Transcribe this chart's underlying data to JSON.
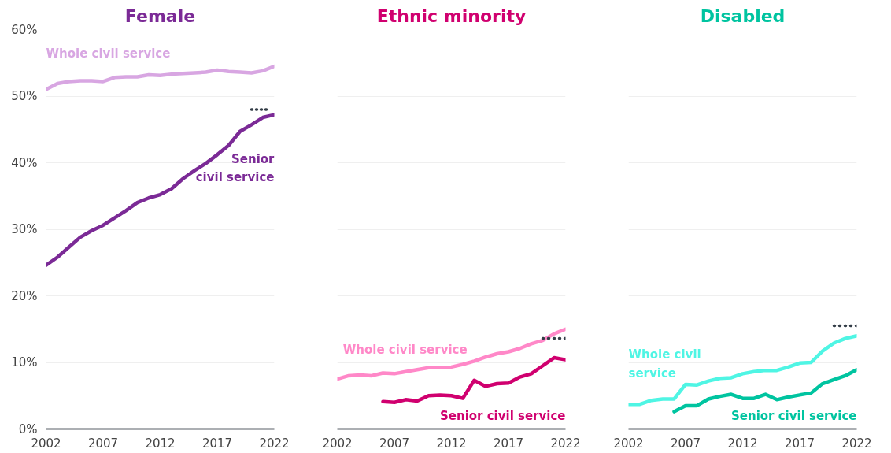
{
  "chart_data": [
    {
      "type": "line",
      "title": "Female",
      "x": [
        2002,
        2003,
        2004,
        2005,
        2006,
        2007,
        2008,
        2009,
        2010,
        2011,
        2012,
        2013,
        2014,
        2015,
        2016,
        2017,
        2018,
        2019,
        2020,
        2021,
        2022
      ],
      "series": [
        {
          "name": "Whole civil service",
          "color": "#d8a6e2",
          "values": [
            51.0,
            51.9,
            52.2,
            52.3,
            52.3,
            52.2,
            52.8,
            52.9,
            52.9,
            53.2,
            53.1,
            53.3,
            53.4,
            53.5,
            53.6,
            53.9,
            53.7,
            53.6,
            53.5,
            53.8,
            54.5
          ]
        },
        {
          "name": "Senior civil service",
          "color": "#7b2a96",
          "values": [
            24.6,
            25.8,
            27.3,
            28.8,
            29.8,
            30.6,
            31.7,
            32.8,
            34.0,
            34.7,
            35.2,
            36.1,
            37.6,
            38.8,
            39.9,
            41.2,
            42.6,
            44.7,
            45.7,
            46.8,
            47.2
          ]
        },
        {
          "color": "#333d47",
          "x": [
            2020,
            2021.6
          ],
          "values": [
            48.0,
            48.0
          ],
          "line_style": "dotted"
        }
      ],
      "xlim": [
        2002,
        2022
      ],
      "xticks": [
        2002,
        2007,
        2012,
        2017,
        2022
      ],
      "ylim": [
        0,
        60
      ],
      "yticks": [
        {
          "value": 0,
          "label": "0%"
        },
        {
          "value": 10,
          "label": "10%"
        },
        {
          "value": 20,
          "label": "20%"
        },
        {
          "value": 30,
          "label": "30%"
        },
        {
          "value": 40,
          "label": "40%"
        },
        {
          "value": 50,
          "label": "50%"
        },
        {
          "value": 60,
          "label": "60%"
        }
      ],
      "grid": "y",
      "line_style": "solid",
      "marker": "none"
    },
    {
      "type": "line",
      "title": "Ethnic minority",
      "x": [
        2002,
        2003,
        2004,
        2005,
        2006,
        2007,
        2008,
        2009,
        2010,
        2011,
        2012,
        2013,
        2014,
        2015,
        2016,
        2017,
        2018,
        2019,
        2020,
        2021,
        2022
      ],
      "series": [
        {
          "name": "Whole civil service",
          "color": "#ff88c8",
          "values": [
            7.5,
            8.0,
            8.1,
            8.0,
            8.4,
            8.3,
            8.6,
            8.9,
            9.2,
            9.2,
            9.3,
            9.7,
            10.2,
            10.8,
            11.3,
            11.6,
            12.1,
            12.8,
            13.3,
            14.3,
            15.0
          ]
        },
        {
          "name": "Senior civil service",
          "color": "#d0006f",
          "values": [
            null,
            null,
            null,
            null,
            4.1,
            4.0,
            4.4,
            4.2,
            5.0,
            5.1,
            5.0,
            4.6,
            7.3,
            6.4,
            6.8,
            6.9,
            7.8,
            8.3,
            9.5,
            10.7,
            10.4
          ]
        },
        {
          "color": "#333d47",
          "x": [
            2020,
            2022
          ],
          "values": [
            13.6,
            13.6
          ],
          "line_style": "dotted"
        }
      ],
      "xlim": [
        2002,
        2022
      ],
      "xticks": [
        2002,
        2007,
        2012,
        2017,
        2022
      ],
      "ylim": [
        0,
        60
      ],
      "yticks": [
        {
          "value": 0,
          "label": null
        },
        {
          "value": 10,
          "label": null
        },
        {
          "value": 20,
          "label": null
        },
        {
          "value": 30,
          "label": null
        },
        {
          "value": 40,
          "label": null
        },
        {
          "value": 50,
          "label": null
        },
        {
          "value": 60,
          "label": null
        }
      ],
      "tick_labels": "x",
      "grid": "y",
      "line_style": "solid",
      "marker": "none"
    },
    {
      "type": "line",
      "title": "Disabled",
      "x": [
        2002,
        2003,
        2004,
        2005,
        2006,
        2007,
        2008,
        2009,
        2010,
        2011,
        2012,
        2013,
        2014,
        2015,
        2016,
        2017,
        2018,
        2019,
        2020,
        2021,
        2022
      ],
      "series": [
        {
          "name": "Whole civil service",
          "color": "#4ff5e4",
          "values": [
            3.7,
            3.7,
            4.3,
            4.5,
            4.5,
            6.7,
            6.6,
            7.2,
            7.6,
            7.7,
            8.3,
            8.6,
            8.8,
            8.8,
            9.3,
            9.9,
            10.0,
            11.7,
            12.9,
            13.6,
            14.0
          ]
        },
        {
          "name": "Senior civil service",
          "color": "#00c4a0",
          "values": [
            null,
            null,
            null,
            null,
            2.6,
            3.5,
            3.5,
            4.5,
            4.9,
            5.2,
            4.6,
            4.6,
            5.2,
            4.4,
            4.8,
            5.1,
            5.4,
            6.8,
            7.4,
            8.0,
            8.9
          ]
        },
        {
          "color": "#333d47",
          "x": [
            2020,
            2022
          ],
          "values": [
            15.5,
            15.5
          ],
          "line_style": "dotted"
        }
      ],
      "xlim": [
        2002,
        2022
      ],
      "xticks": [
        2002,
        2007,
        2012,
        2017,
        2022
      ],
      "ylim": [
        0,
        60
      ],
      "yticks": [
        {
          "value": 0,
          "label": null
        },
        {
          "value": 10,
          "label": null
        },
        {
          "value": 20,
          "label": null
        },
        {
          "value": 30,
          "label": null
        },
        {
          "value": 40,
          "label": null
        },
        {
          "value": 50,
          "label": null
        },
        {
          "value": 60,
          "label": null
        }
      ],
      "tick_labels": "x",
      "grid": "y",
      "line_style": "solid",
      "marker": "none"
    }
  ]
}
